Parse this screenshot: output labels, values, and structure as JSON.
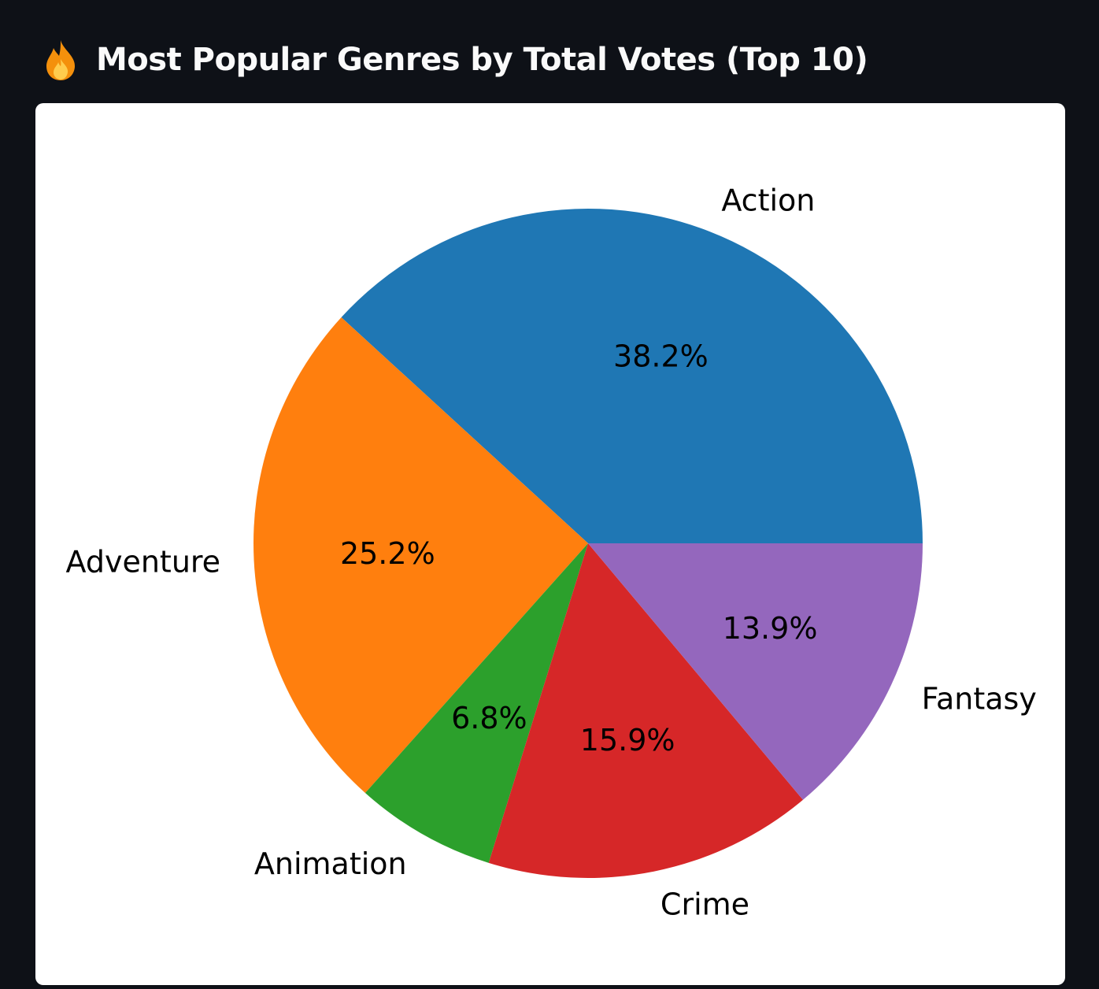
{
  "header": {
    "icon": "fire-icon",
    "title": "Most Popular Genres by Total Votes (Top 10)"
  },
  "chart_data": {
    "type": "pie",
    "start_angle": 0,
    "direction": "counterclockwise",
    "slices": [
      {
        "label": "Action",
        "value": 38.2,
        "pct_label": "38.2%",
        "color": "#1f77b4"
      },
      {
        "label": "Adventure",
        "value": 25.2,
        "pct_label": "25.2%",
        "color": "#ff7f0e"
      },
      {
        "label": "Animation",
        "value": 6.8,
        "pct_label": "6.8%",
        "color": "#2ca02c"
      },
      {
        "label": "Crime",
        "value": 15.9,
        "pct_label": "15.9%",
        "color": "#d62728"
      },
      {
        "label": "Fantasy",
        "value": 13.9,
        "pct_label": "13.9%",
        "color": "#9467bd"
      }
    ]
  }
}
